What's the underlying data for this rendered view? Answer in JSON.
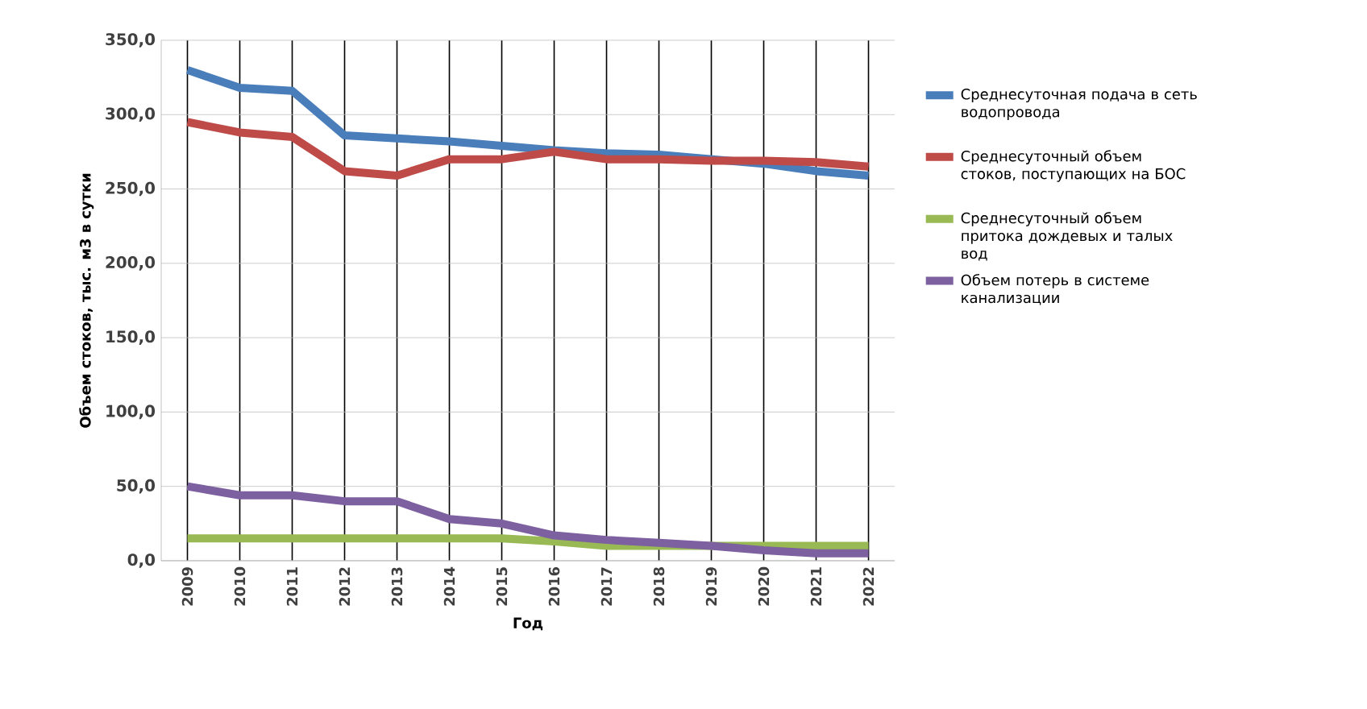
{
  "chart_data": {
    "type": "line",
    "xlabel": "Год",
    "ylabel": "Объем стоков, тыс. м3 в сутки",
    "categories": [
      "2009",
      "2010",
      "2011",
      "2012",
      "2013",
      "2014",
      "2015",
      "2016",
      "2017",
      "2018",
      "2019",
      "2020",
      "2021",
      "2022"
    ],
    "series": [
      {
        "name": "Среднесуточная подача в сеть водопровода",
        "color": "#4a7ebb",
        "values": [
          330,
          318,
          316,
          286,
          284,
          282,
          279,
          276,
          274,
          273,
          270,
          267,
          262,
          259
        ]
      },
      {
        "name": "Среднесуточный объем стоков, поступающих на БОС",
        "color": "#be4b48",
        "values": [
          295,
          288,
          285,
          262,
          259,
          270,
          270,
          275,
          270,
          270,
          269,
          269,
          268,
          265
        ]
      },
      {
        "name": "Среднесуточный объем притока дождевых и талых вод",
        "color": "#98b954",
        "values": [
          15,
          15,
          15,
          15,
          15,
          15,
          15,
          13,
          10,
          10,
          10,
          10,
          10,
          10
        ]
      },
      {
        "name": "Объем потерь в системе канализации",
        "color": "#7d60a0",
        "values": [
          50,
          44,
          44,
          40,
          40,
          28,
          25,
          17,
          14,
          12,
          10,
          7,
          5,
          5
        ]
      }
    ],
    "ylim": [
      0,
      350
    ],
    "yticks": [
      {
        "value": 0,
        "label": "0,0"
      },
      {
        "value": 50,
        "label": "50,0"
      },
      {
        "value": 100,
        "label": "100,0"
      },
      {
        "value": 150,
        "label": "150,0"
      },
      {
        "value": 200,
        "label": "200,0"
      },
      {
        "value": 250,
        "label": "250,0"
      },
      {
        "value": 300,
        "label": "300,0"
      },
      {
        "value": 350,
        "label": "350,0"
      }
    ],
    "grid": true,
    "legend": "right",
    "marker": "none",
    "line_style": "solid"
  }
}
